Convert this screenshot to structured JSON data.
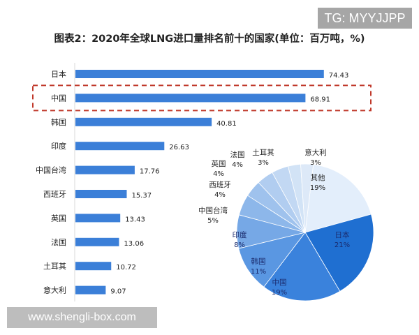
{
  "watermark_top": "TG: MYYJJPP",
  "watermark_bottom": "www.shengli-box.com",
  "chart_data": [
    {
      "type": "bar",
      "orientation": "horizontal",
      "title": "图表2：2020年全球LNG进口量排名前十的国家(单位：百万吨，%)",
      "categories": [
        "日本",
        "中国",
        "韩国",
        "印度",
        "中国台湾",
        "西班牙",
        "英国",
        "法国",
        "土耳其",
        "意大利"
      ],
      "values": [
        74.43,
        68.91,
        40.81,
        26.63,
        17.76,
        15.37,
        13.43,
        13.06,
        10.72,
        9.07
      ],
      "highlight": "中国",
      "color": "#3b7fd8",
      "highlight_color": "#c0392b"
    },
    {
      "type": "pie",
      "labels": [
        "其他",
        "日本",
        "中国",
        "韩国",
        "印度",
        "中国台湾",
        "西班牙",
        "英国",
        "法国",
        "土耳其",
        "意大利"
      ],
      "values": [
        19,
        21,
        19,
        11,
        8,
        5,
        4,
        4,
        4,
        3,
        3
      ],
      "value_labels": [
        "19%",
        "21%",
        "19%",
        "11%",
        "8%",
        "5%",
        "4%",
        "4%",
        "4%",
        "3%",
        "3%"
      ],
      "colors": [
        "#e3eefb",
        "#1f6fd1",
        "#3a82dc",
        "#5a97e2",
        "#76a8e6",
        "#8db7ea",
        "#9fc2ed",
        "#b1cdf0",
        "#c2d8f3",
        "#d2e3f6",
        "#dde9f8"
      ]
    }
  ]
}
